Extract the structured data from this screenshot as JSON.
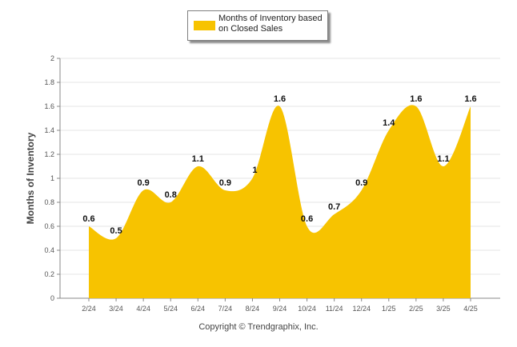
{
  "legend": {
    "label": "Months of Inventory based on Closed Sales"
  },
  "copyright": "Copyright © Trendgraphix, Inc.",
  "colors": {
    "fill": "#F7C300",
    "grid": "#e6e6e6",
    "axis": "#888888"
  },
  "chart_data": {
    "type": "area",
    "title": "",
    "xlabel": "",
    "ylabel": "Months of Inventory",
    "categories": [
      "2/24",
      "3/24",
      "4/24",
      "5/24",
      "6/24",
      "7/24",
      "8/24",
      "9/24",
      "10/24",
      "11/24",
      "12/24",
      "1/25",
      "2/25",
      "3/25",
      "4/25"
    ],
    "series": [
      {
        "name": "Months of Inventory based on Closed Sales",
        "values": [
          0.6,
          0.5,
          0.9,
          0.8,
          1.1,
          0.9,
          1,
          1.6,
          0.6,
          0.7,
          0.9,
          1.4,
          1.6,
          1.1,
          1.6
        ]
      }
    ],
    "data_labels": [
      "0.6",
      "0.5",
      "0.9",
      "0.8",
      "1.1",
      "0.9",
      "1",
      "1.6",
      "0.6",
      "0.7",
      "0.9",
      "1.4",
      "1.6",
      "1.1",
      "1.6"
    ],
    "yticks": [
      "0",
      "0.2",
      "0.4",
      "0.6",
      "0.8",
      "1",
      "1.2",
      "1.4",
      "1.6",
      "1.8",
      "2"
    ],
    "ylim": [
      0,
      2
    ],
    "grid": true,
    "legend_position": "top-center"
  }
}
